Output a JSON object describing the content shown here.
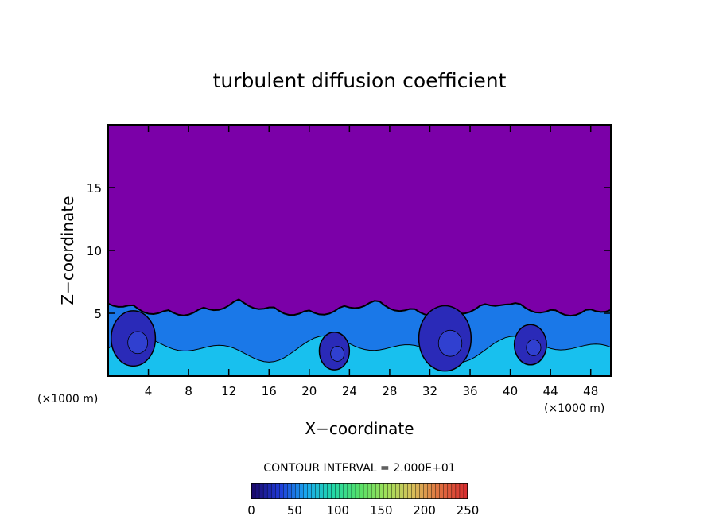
{
  "chart_data": {
    "type": "heatmap",
    "title": "turbulent diffusion coefficient",
    "xlabel": "X−coordinate",
    "ylabel": "Z−coordinate",
    "x_unit_left": "(×1000 m)",
    "x_unit_right": "(×1000 m)",
    "xlim": [
      0,
      50
    ],
    "ylim": [
      0,
      20
    ],
    "xticks": [
      4,
      8,
      12,
      16,
      20,
      24,
      28,
      32,
      36,
      40,
      44,
      48
    ],
    "yticks": [
      5,
      10,
      15
    ],
    "contour_interval_text": "CONTOUR INTERVAL = 2.000E+01",
    "colorbar": {
      "min": 0,
      "max": 250,
      "ticks": [
        0,
        50,
        100,
        150,
        200,
        250
      ],
      "colors": [
        "#1a0a6e",
        "#1f3bd8",
        "#19a9ee",
        "#22d8a8",
        "#55e068",
        "#9fe05a",
        "#d8c05a",
        "#e07040",
        "#d83030"
      ]
    },
    "field_colors": {
      "background": "#7b00a8",
      "low": "#2a2ab8",
      "mid": "#1a78e8",
      "high": "#18c0ee"
    },
    "boundary_layer_top_z": 6.2,
    "eddies": [
      {
        "x": 2.5,
        "z": 3.0,
        "r": 2.2
      },
      {
        "x": 33.5,
        "z": 3.0,
        "r": 2.6
      },
      {
        "x": 22.5,
        "z": 2.0,
        "r": 1.5
      },
      {
        "x": 42.0,
        "z": 2.5,
        "r": 1.6
      }
    ]
  }
}
